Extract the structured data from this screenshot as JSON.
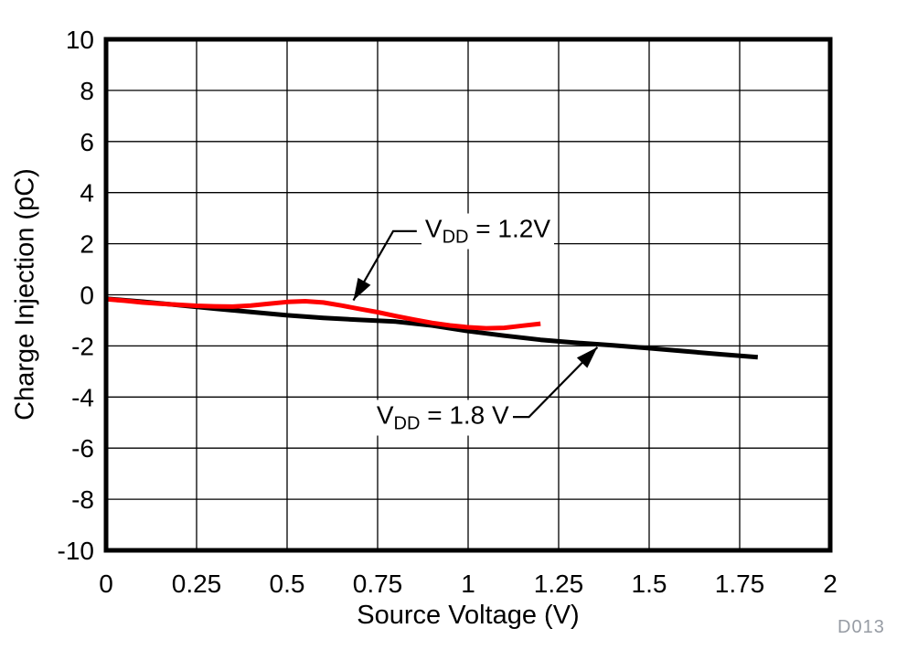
{
  "chart_data": {
    "type": "line",
    "title": "",
    "xlabel": "Source Voltage (V)",
    "ylabel": "Charge Injection (pC)",
    "xlim": [
      0,
      2
    ],
    "ylim": [
      -10,
      10
    ],
    "grid": true,
    "legend_position": "none",
    "background_color": "#ffffff",
    "frame_color": "#000000",
    "gridline_color": "#000000",
    "x_ticks": [
      {
        "value": 0,
        "label": "0"
      },
      {
        "value": 0.25,
        "label": "0.25"
      },
      {
        "value": 0.5,
        "label": "0.5"
      },
      {
        "value": 0.75,
        "label": "0.75"
      },
      {
        "value": 1,
        "label": "1"
      },
      {
        "value": 1.25,
        "label": "1.25"
      },
      {
        "value": 1.5,
        "label": "1.5"
      },
      {
        "value": 1.75,
        "label": "1.75"
      },
      {
        "value": 2,
        "label": "2"
      }
    ],
    "y_ticks": [
      {
        "value": 10,
        "label": "10"
      },
      {
        "value": 8,
        "label": "8"
      },
      {
        "value": 6,
        "label": "6"
      },
      {
        "value": 4,
        "label": "4"
      },
      {
        "value": 2,
        "label": "2"
      },
      {
        "value": 0,
        "label": "0"
      },
      {
        "value": -2,
        "label": "-2"
      },
      {
        "value": -4,
        "label": "-4"
      },
      {
        "value": -6,
        "label": "-6"
      },
      {
        "value": -8,
        "label": "-8"
      },
      {
        "value": -10,
        "label": "-10"
      }
    ],
    "series": [
      {
        "name": "VDD = 1.8 V",
        "color": "#000000",
        "x": [
          0,
          0.1,
          0.2,
          0.3,
          0.4,
          0.5,
          0.6,
          0.7,
          0.8,
          0.9,
          1.0,
          1.1,
          1.2,
          1.3,
          1.4,
          1.5,
          1.6,
          1.7,
          1.8
        ],
        "y": [
          -0.15,
          -0.27,
          -0.4,
          -0.54,
          -0.67,
          -0.8,
          -0.9,
          -0.98,
          -1.05,
          -1.2,
          -1.42,
          -1.6,
          -1.76,
          -1.88,
          -1.98,
          -2.09,
          -2.21,
          -2.33,
          -2.44
        ]
      },
      {
        "name": "VDD = 1.2V",
        "color": "#ff0000",
        "x": [
          0,
          0.05,
          0.1,
          0.15,
          0.2,
          0.25,
          0.3,
          0.35,
          0.4,
          0.45,
          0.5,
          0.55,
          0.6,
          0.65,
          0.7,
          0.75,
          0.8,
          0.85,
          0.9,
          0.95,
          1.0,
          1.05,
          1.1,
          1.15,
          1.2
        ],
        "y": [
          -0.17,
          -0.23,
          -0.3,
          -0.35,
          -0.39,
          -0.43,
          -0.45,
          -0.46,
          -0.42,
          -0.35,
          -0.28,
          -0.25,
          -0.3,
          -0.42,
          -0.55,
          -0.68,
          -0.83,
          -0.97,
          -1.1,
          -1.2,
          -1.27,
          -1.31,
          -1.29,
          -1.21,
          -1.13
        ]
      }
    ],
    "annotations": [
      {
        "id": "vdd-1p2",
        "label_pre": "V",
        "label_sub": "DD",
        "label_post": " = 1.2V",
        "text_x": 0.871,
        "text_y": 2.49,
        "leader": [
          [
            0.858,
            2.49
          ],
          [
            0.793,
            2.49
          ],
          [
            0.683,
            -0.22
          ]
        ]
      },
      {
        "id": "vdd-1p8",
        "label_pre": "V",
        "label_sub": "DD",
        "label_post": " = 1.8 V",
        "text_x": 0.737,
        "text_y": -4.8,
        "leader": [
          [
            1.122,
            -4.78
          ],
          [
            1.168,
            -4.78
          ],
          [
            1.357,
            -2.05
          ]
        ]
      }
    ],
    "watermark": "D013",
    "watermark_color": "#979ca4"
  }
}
